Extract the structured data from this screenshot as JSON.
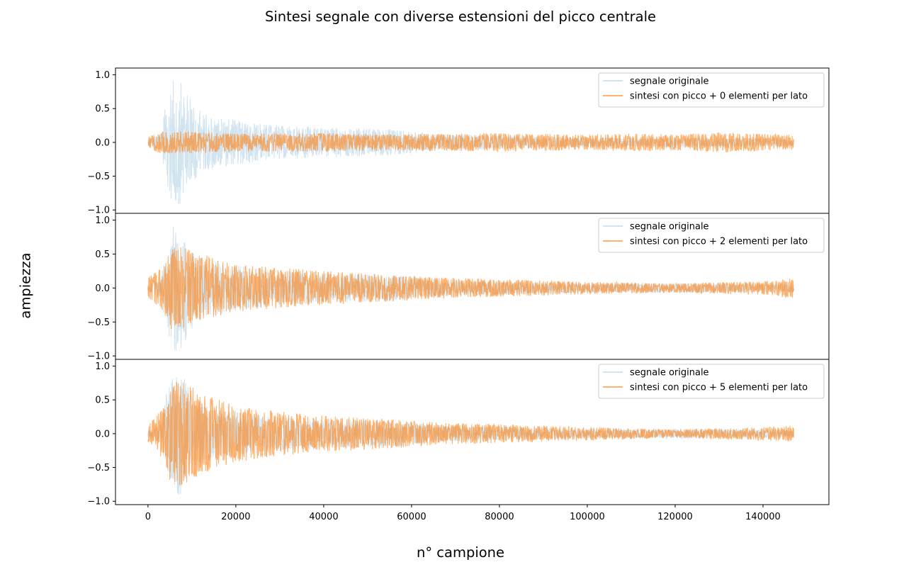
{
  "figure": {
    "title": "Sintesi segnale con diverse estensioni del picco centrale",
    "xlabel": "n° campione",
    "ylabel": "ampiezza"
  },
  "colors": {
    "original": "#1f77b4",
    "synthesis": "#ff7f0e"
  },
  "chart_data": [
    {
      "type": "line",
      "panel": "top",
      "xlim": [
        -7400,
        155000
      ],
      "ylim": [
        -1.05,
        1.1
      ],
      "yticks": [
        -1.0,
        -0.5,
        0.0,
        0.5,
        1.0
      ],
      "xticks": [],
      "grid": false,
      "legend_position": "upper-right",
      "series": [
        {
          "name": "segnale originale",
          "alpha": 0.2,
          "envelope": {
            "x": [
              0,
              3000,
              4000,
              5500,
              6500,
              8000,
              10000,
              13000,
              20000,
              30000,
              40000,
              55000,
              65000,
              80000,
              100000,
              120000,
              147000
            ],
            "amplitude": [
              0.05,
              0.15,
              0.55,
              0.9,
              0.97,
              0.85,
              0.6,
              0.42,
              0.33,
              0.25,
              0.22,
              0.2,
              0.13,
              0.1,
              0.07,
              0.07,
              0.06
            ]
          }
        },
        {
          "name": "sintesi con picco + 0 elementi per lato",
          "alpha": 0.6,
          "envelope": {
            "x": [
              0,
              3000,
              8000,
              20000,
              40000,
              55000,
              70000,
              80000,
              100000,
              110000,
              120000,
              130000,
              140000,
              147000
            ],
            "amplitude": [
              0.08,
              0.17,
              0.17,
              0.13,
              0.14,
              0.12,
              0.13,
              0.14,
              0.11,
              0.13,
              0.12,
              0.15,
              0.13,
              0.1
            ]
          }
        }
      ]
    },
    {
      "type": "line",
      "panel": "middle",
      "xlim": [
        -7400,
        155000
      ],
      "ylim": [
        -1.05,
        1.1
      ],
      "yticks": [
        -1.0,
        -0.5,
        0.0,
        0.5,
        1.0
      ],
      "xticks": [],
      "grid": false,
      "legend_position": "upper-right",
      "series": [
        {
          "name": "segnale originale",
          "alpha": 0.2,
          "envelope": {
            "x": [
              0,
              3000,
              4000,
              5500,
              6500,
              8000,
              10000,
              13000,
              20000,
              30000,
              40000,
              55000,
              65000,
              80000,
              100000,
              120000,
              147000
            ],
            "amplitude": [
              0.05,
              0.15,
              0.55,
              0.9,
              0.97,
              0.85,
              0.6,
              0.42,
              0.33,
              0.25,
              0.22,
              0.2,
              0.13,
              0.1,
              0.07,
              0.07,
              0.06
            ]
          }
        },
        {
          "name": "sintesi con picco + 2 elementi per lato",
          "alpha": 0.6,
          "envelope": {
            "x": [
              0,
              3000,
              5000,
              7000,
              10000,
              15000,
              20000,
              30000,
              40000,
              55000,
              65000,
              80000,
              100000,
              120000,
              140000,
              147000
            ],
            "amplitude": [
              0.15,
              0.3,
              0.6,
              0.62,
              0.55,
              0.45,
              0.35,
              0.3,
              0.25,
              0.2,
              0.16,
              0.13,
              0.09,
              0.07,
              0.1,
              0.15
            ]
          }
        }
      ]
    },
    {
      "type": "line",
      "panel": "bottom",
      "xlim": [
        -7400,
        155000
      ],
      "ylim": [
        -1.05,
        1.1
      ],
      "yticks": [
        -1.0,
        -0.5,
        0.0,
        0.5,
        1.0
      ],
      "xticks": [
        0,
        20000,
        40000,
        60000,
        80000,
        100000,
        120000,
        140000
      ],
      "grid": false,
      "legend_position": "upper-right",
      "series": [
        {
          "name": "segnale originale",
          "alpha": 0.2,
          "envelope": {
            "x": [
              0,
              3000,
              4000,
              5500,
              6500,
              8000,
              10000,
              13000,
              20000,
              30000,
              40000,
              55000,
              65000,
              80000,
              100000,
              120000,
              147000
            ],
            "amplitude": [
              0.05,
              0.15,
              0.55,
              0.9,
              0.97,
              0.85,
              0.6,
              0.42,
              0.33,
              0.25,
              0.22,
              0.2,
              0.13,
              0.1,
              0.07,
              0.07,
              0.06
            ]
          }
        },
        {
          "name": "sintesi con picco + 5 elementi per lato",
          "alpha": 0.6,
          "envelope": {
            "x": [
              0,
              3000,
              5000,
              7000,
              9000,
              12000,
              20000,
              30000,
              40000,
              55000,
              65000,
              80000,
              100000,
              120000,
              140000,
              147000
            ],
            "amplitude": [
              0.15,
              0.35,
              0.7,
              0.8,
              0.75,
              0.6,
              0.42,
              0.33,
              0.27,
              0.22,
              0.17,
              0.14,
              0.1,
              0.06,
              0.1,
              0.12
            ]
          }
        }
      ]
    }
  ]
}
